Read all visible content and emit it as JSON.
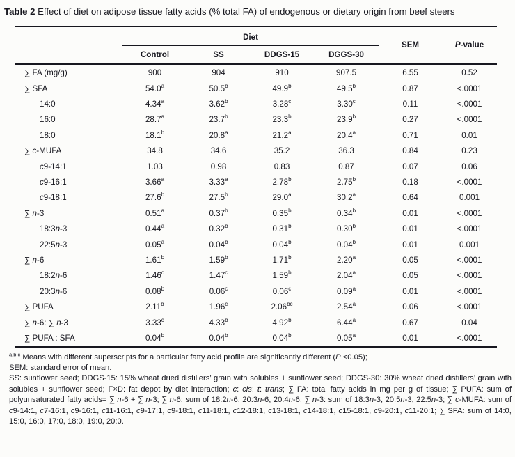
{
  "caption": {
    "label": "Table 2",
    "rest": " Effect of diet on adipose tissue fatty acids (% total FA) of endogenous or dietary origin from beef steers"
  },
  "table": {
    "group_header": "Diet",
    "columns": [
      "Control",
      "SS",
      "DDGS-15",
      "DGGS-30"
    ],
    "sem_header": "SEM",
    "pvalue_header": "{i}P{/i}-value",
    "rows": [
      {
        "label": "∑ FA (mg/g)",
        "indent": 0,
        "cells": [
          "900",
          "904",
          "910",
          "907.5",
          "6.55",
          "0.52"
        ]
      },
      {
        "label": "∑ SFA",
        "indent": 0,
        "cells": [
          "54.0{sup}a{/sup}",
          "50.5{sup}b{/sup}",
          "49.9{sup}b{/sup}",
          "49.5{sup}b{/sup}",
          "0.87",
          "<.0001"
        ]
      },
      {
        "label": "14:0",
        "indent": 1,
        "cells": [
          "4.34{sup}a{/sup}",
          "3.62{sup}b{/sup}",
          "3.28{sup}c{/sup}",
          "3.30{sup}c{/sup}",
          "0.11",
          "<.0001"
        ]
      },
      {
        "label": "16:0",
        "indent": 1,
        "cells": [
          "28.7{sup}a{/sup}",
          "23.7{sup}b{/sup}",
          "23.3{sup}b{/sup}",
          "23.9{sup}b{/sup}",
          "0.27",
          "<.0001"
        ]
      },
      {
        "label": "18:0",
        "indent": 1,
        "cells": [
          "18.1{sup}b{/sup}",
          "20.8{sup}a{/sup}",
          "21.2{sup}a{/sup}",
          "20.4{sup}a{/sup}",
          "0.71",
          "0.01"
        ]
      },
      {
        "label": "∑ {i}c{/i}-MUFA",
        "indent": 0,
        "cells": [
          "34.8",
          "34.6",
          "35.2",
          "36.3",
          "0.84",
          "0.23"
        ]
      },
      {
        "label": "{i}c{/i}9-14:1",
        "indent": 1,
        "cells": [
          "1.03",
          "0.98",
          "0.83",
          "0.87",
          "0.07",
          "0.06"
        ]
      },
      {
        "label": "{i}c{/i}9-16:1",
        "indent": 1,
        "cells": [
          "3.66{sup}a{/sup}",
          "3.33{sup}a{/sup}",
          "2.78{sup}b{/sup}",
          "2.75{sup}b{/sup}",
          "0.18",
          "<.0001"
        ]
      },
      {
        "label": "{i}c{/i}9-18:1",
        "indent": 1,
        "cells": [
          "27.6{sup}b{/sup}",
          "27.5{sup}b{/sup}",
          "29.0{sup}a{/sup}",
          "30.2{sup}a{/sup}",
          "0.64",
          "0.001"
        ]
      },
      {
        "label": "∑ {i}n{/i}-3",
        "indent": 0,
        "cells": [
          "0.51{sup}a{/sup}",
          "0.37{sup}b{/sup}",
          "0.35{sup}b{/sup}",
          "0.34{sup}b{/sup}",
          "0.01",
          "<.0001"
        ]
      },
      {
        "label": "18:3{i}n{/i}-3",
        "indent": 1,
        "cells": [
          "0.44{sup}a{/sup}",
          "0.32{sup}b{/sup}",
          "0.31{sup}b{/sup}",
          "0.30{sup}b{/sup}",
          "0.01",
          "<.0001"
        ]
      },
      {
        "label": "22:5{i}n{/i}-3",
        "indent": 1,
        "cells": [
          "0.05{sup}a{/sup}",
          "0.04{sup}b{/sup}",
          "0.04{sup}b{/sup}",
          "0.04{sup}b{/sup}",
          "0.01",
          "0.001"
        ]
      },
      {
        "label": "∑ {i}n{/i}-6",
        "indent": 0,
        "cells": [
          "1.61{sup}b{/sup}",
          "1.59{sup}b{/sup}",
          "1.71{sup}b{/sup}",
          "2.20{sup}a{/sup}",
          "0.05",
          "<.0001"
        ]
      },
      {
        "label": "18:2{i}n{/i}-6",
        "indent": 1,
        "cells": [
          "1.46{sup}c{/sup}",
          "1.47{sup}c{/sup}",
          "1.59{sup}b{/sup}",
          "2.04{sup}a{/sup}",
          "0.05",
          "<.0001"
        ]
      },
      {
        "label": "20:3{i}n{/i}-6",
        "indent": 1,
        "cells": [
          "0.08{sup}b{/sup}",
          "0.06{sup}c{/sup}",
          "0.06{sup}c{/sup}",
          "0.09{sup}a{/sup}",
          "0.01",
          "<.0001"
        ]
      },
      {
        "label": "∑ PUFA",
        "indent": 0,
        "cells": [
          "2.11{sup}b{/sup}",
          "1.96{sup}c{/sup}",
          "2.06{sup}bc{/sup}",
          "2.54{sup}a{/sup}",
          "0.06",
          "<.0001"
        ]
      },
      {
        "label": "∑ {i}n{/i}-6: ∑ {i}n{/i}-3",
        "indent": 0,
        "cells": [
          "3.33{sup}c{/sup}",
          "4.33{sup}b{/sup}",
          "4.92{sup}b{/sup}",
          "6.44{sup}a{/sup}",
          "0.67",
          "0.04"
        ]
      },
      {
        "label": "∑ PUFA : SFA",
        "indent": 0,
        "cells": [
          "0.04{sup}b{/sup}",
          "0.04{sup}b{/sup}",
          "0.04{sup}b{/sup}",
          "0.05{sup}a{/sup}",
          "0.01",
          "<.0001"
        ]
      }
    ]
  },
  "footnotes": [
    "{sup}a,b,c{/sup} Means with different superscripts for a particular fatty acid profile are significantly different ({i}P{/i} <0.05);",
    "SEM: standard error of mean.",
    "SS: sunflower seed; DDGS-15: 15% wheat dried distillers’ grain with solubles + sunflower seed; DDGS-30: 30% wheat dried distillers’ grain with solubles + sunflower seed; F×D: fat depot by diet interaction; {i}c{/i}: {i}cis{/i}; {i}t{/i}: {i}trans{/i}; ∑ FA: total fatty acids in mg per g of tissue; ∑ PUFA: sum of polyunsaturated fatty acids= ∑ {i}n{/i}-6 + ∑ {i}n{/i}-3; ∑ {i}n{/i}-6: sum of 18:2{i}n{/i}-6, 20:3{i}n{/i}-6, 20:4{i}n{/i}-6; ∑ {i}n{/i}-3: sum of 18:3{i}n{/i}-3, 20:5{i}n{/i}-3, 22:5{i}n{/i}-3; ∑ {i}c{/i}-MUFA: sum of {i}c{/i}9-14:1, {i}c{/i}7-16:1, {i}c{/i}9-16:1, {i}c{/i}11-16:1, {i}c{/i}9-17:1, {i}c{/i}9-18:1, {i}c{/i}11-18:1, {i}c{/i}12-18:1, {i}c{/i}13-18:1, {i}c{/i}14-18:1, {i}c{/i}15-18:1, {i}c{/i}9-20:1, {i}c{/i}11-20:1; ∑ SFA: sum of 14:0, 15:0, 16:0, 17:0, 18:0, 19:0, 20:0."
  ]
}
